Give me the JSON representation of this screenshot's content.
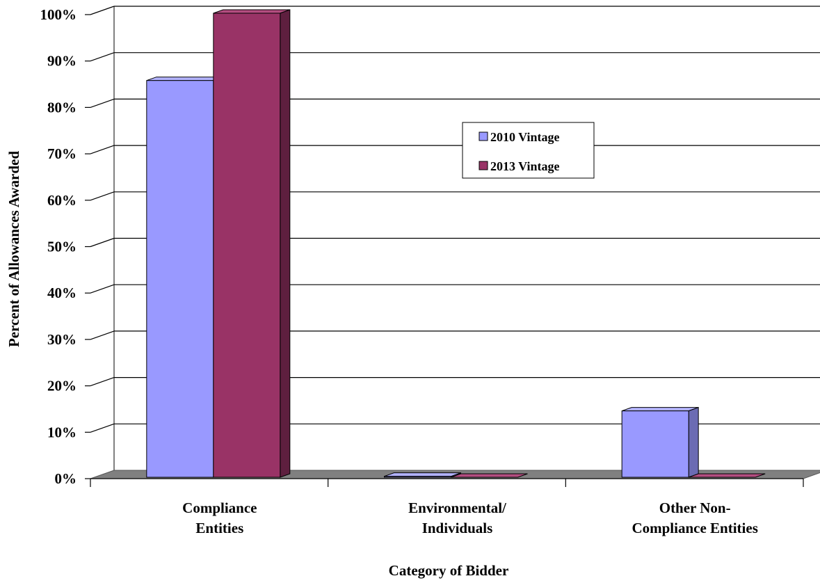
{
  "chart_data": {
    "type": "bar",
    "categories": [
      [
        "Compliance",
        "Entities"
      ],
      [
        "Environmental/",
        "Individuals"
      ],
      [
        "Other Non-",
        "Compliance Entities"
      ]
    ],
    "series": [
      {
        "name": "2010 Vintage",
        "values": [
          85.5,
          0.2,
          14.3
        ],
        "color": "#9999ff",
        "top_color": "#b3b3ff",
        "side_color": "#6b6bb3"
      },
      {
        "name": "2013 Vintage",
        "values": [
          100,
          0,
          0
        ],
        "color": "#993366",
        "top_color": "#b34d80",
        "side_color": "#5e1f3f"
      }
    ],
    "xlabel": "Category of Bidder",
    "ylabel": "Percent of Allowances Awarded",
    "ylim": [
      0,
      100
    ],
    "yticks": [
      "0%",
      "10%",
      "20%",
      "30%",
      "40%",
      "50%",
      "60%",
      "70%",
      "80%",
      "90%",
      "100%"
    ],
    "grid": true,
    "three_d": true,
    "floor_color": "#808080",
    "legend_position": "center-right"
  }
}
